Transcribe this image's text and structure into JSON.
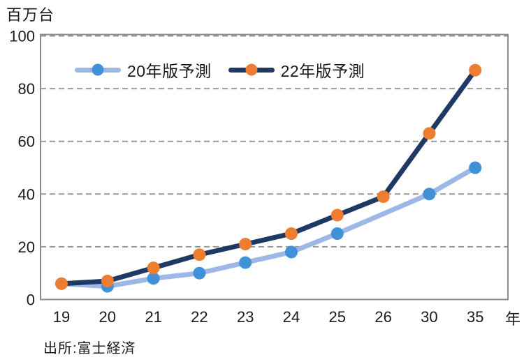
{
  "chart_data": {
    "type": "line",
    "unit_label": "百万台",
    "x_axis_label": "年",
    "source": "出所:富士経済",
    "categories": [
      "19",
      "20",
      "21",
      "22",
      "23",
      "24",
      "25",
      "26",
      "30",
      "35"
    ],
    "y_ticks": [
      0,
      20,
      40,
      60,
      80,
      100
    ],
    "ylim": [
      0,
      100
    ],
    "grid": "horizontal-dashed",
    "legend_position": "top-inside-left",
    "series": [
      {
        "name": "20年版予測",
        "line_color": "#9DB8E6",
        "marker_color": "#4191D9",
        "x": [
          "19",
          "20",
          "21",
          "22",
          "23",
          "24",
          "25",
          "30",
          "35"
        ],
        "values": [
          6,
          5,
          8,
          10,
          14,
          18,
          25,
          40,
          50
        ]
      },
      {
        "name": "22年版予測",
        "line_color": "#1F3864",
        "marker_color": "#ED7D31",
        "x": [
          "19",
          "20",
          "21",
          "22",
          "23",
          "24",
          "25",
          "26",
          "30",
          "35"
        ],
        "values": [
          6,
          7,
          12,
          17,
          21,
          25,
          32,
          39,
          63,
          87
        ]
      }
    ],
    "frame_color": "#8C8C8C",
    "grid_color": "#999999",
    "text_color": "#1A1A1A",
    "background": "#FFFFFF"
  }
}
